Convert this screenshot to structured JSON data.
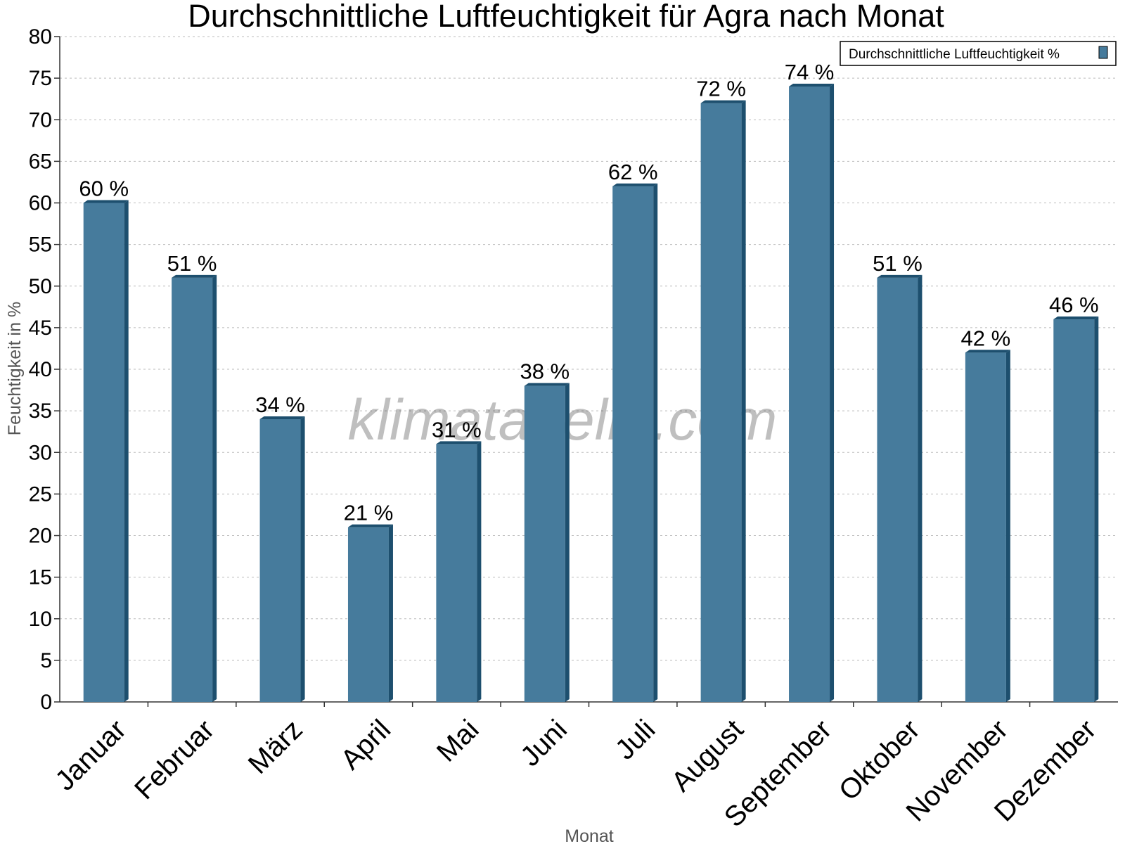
{
  "chart_data": {
    "type": "bar",
    "title": "Durchschnittliche Luftfeuchtigkeit für Agra nach Monat",
    "xlabel": "Monat",
    "ylabel": "Feuchtigkeit in %",
    "categories": [
      "Januar",
      "Februar",
      "März",
      "April",
      "Mai",
      "Juni",
      "Juli",
      "August",
      "September",
      "Oktober",
      "November",
      "Dezember"
    ],
    "series": [
      {
        "name": "Durchschnittliche Luftfeuchtigkeit %",
        "values": [
          60,
          51,
          34,
          21,
          31,
          38,
          62,
          72,
          74,
          51,
          42,
          46
        ],
        "data_labels": [
          "60 %",
          "51 %",
          "34 %",
          "21 %",
          "31 %",
          "38 %",
          "62 %",
          "72 %",
          "74 %",
          "51 %",
          "42 %",
          "46 %"
        ],
        "color": "#467b9c",
        "shade_color": "#1d4f6e"
      }
    ],
    "ylim": [
      0,
      80
    ],
    "yticks": [
      0,
      5,
      10,
      15,
      20,
      25,
      30,
      35,
      40,
      45,
      50,
      55,
      60,
      65,
      70,
      75,
      80
    ],
    "grid": true,
    "legend_position": "top-right",
    "watermark": "klimatabelle.com"
  }
}
